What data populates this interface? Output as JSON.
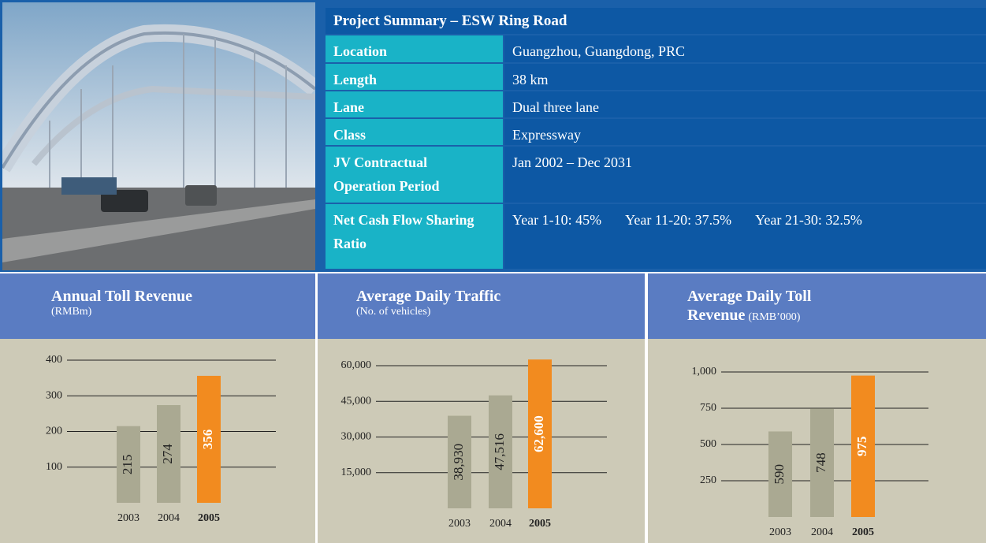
{
  "project_summary": {
    "title": "Project Summary – ESW Ring Road",
    "rows": [
      {
        "label": "Location",
        "value": "Guangzhou, Guangdong, PRC"
      },
      {
        "label": "Length",
        "value": "38 km"
      },
      {
        "label": "Lane",
        "value": "Dual three lane"
      },
      {
        "label": "Class",
        "value": "Expressway"
      },
      {
        "label": "JV Contractual Operation Period",
        "value": "Jan 2002 – Dec 2031"
      },
      {
        "label": "Net Cash Flow Sharing Ratio",
        "values": [
          "Year 1-10: 45%",
          "Year 11-20: 37.5%",
          "Year 21-30: 32.5%"
        ]
      }
    ]
  },
  "chart_data": [
    {
      "type": "bar",
      "title": "Annual Toll Revenue",
      "subtitle": "(RMBm)",
      "categories": [
        "2003",
        "2004",
        "2005"
      ],
      "values": [
        215,
        274,
        356
      ],
      "colors": [
        "#aaa992",
        "#aaa992",
        "#f28b1f"
      ],
      "ylim": [
        0,
        400
      ],
      "yticks": [
        100,
        200,
        300,
        400
      ],
      "grid": true
    },
    {
      "type": "bar",
      "title": "Average Daily Traffic",
      "subtitle": "(No. of vehicles)",
      "categories": [
        "2003",
        "2004",
        "2005"
      ],
      "values": [
        38930,
        47516,
        62600
      ],
      "value_labels": [
        "38,930",
        "47,516",
        "62,600"
      ],
      "colors": [
        "#aaa992",
        "#aaa992",
        "#f28b1f"
      ],
      "ylim": [
        0,
        60000
      ],
      "yticks": [
        {
          "value": 15000,
          "label": "15,000"
        },
        {
          "value": 30000,
          "label": "30,000"
        },
        {
          "value": 45000,
          "label": "45,000"
        },
        {
          "value": 60000,
          "label": "60,000"
        }
      ],
      "grid": true
    },
    {
      "type": "bar",
      "title": "Average Daily Toll Revenue",
      "subtitle": "(RMB’000)",
      "categories": [
        "2003",
        "2004",
        "2005"
      ],
      "values": [
        590,
        748,
        975
      ],
      "colors": [
        "#aaa992",
        "#aaa992",
        "#f28b1f"
      ],
      "ylim": [
        0,
        1000
      ],
      "yticks": [
        250,
        500,
        750,
        {
          "value": 1000,
          "label": "1,000"
        }
      ],
      "grid": true
    }
  ]
}
